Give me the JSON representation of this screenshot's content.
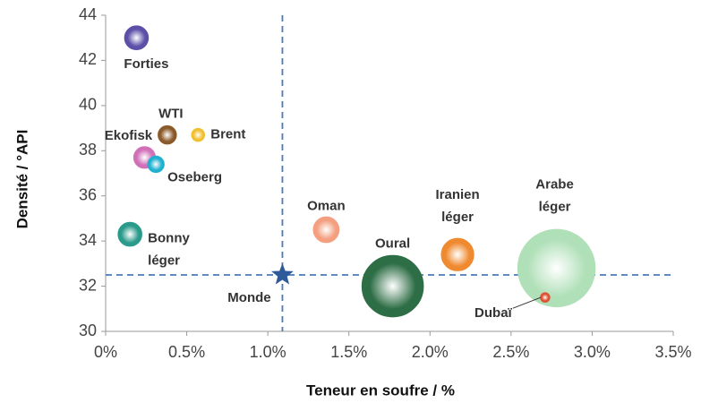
{
  "chart_data": {
    "type": "bubble",
    "x_label": "Teneur en soufre / %",
    "y_label": "Densité / °API",
    "xlim": [
      0,
      3.5
    ],
    "xticks": [
      {
        "value": 0,
        "label": "0%"
      },
      {
        "value": 0.5,
        "label": "0.5%"
      },
      {
        "value": 1,
        "label": "1.0%"
      },
      {
        "value": 1.5,
        "label": "1.5%"
      },
      {
        "value": 2,
        "label": "2.0%"
      },
      {
        "value": 2.5,
        "label": "2.5%"
      },
      {
        "value": 3,
        "label": "3.0%"
      },
      {
        "value": 3.5,
        "label": "3.5%"
      }
    ],
    "ylim": [
      30,
      44
    ],
    "yticks": [
      30,
      32,
      34,
      36,
      38,
      40,
      42,
      44
    ],
    "points": [
      {
        "label": [
          "Forties"
        ],
        "x": 0.19,
        "y": 43.0,
        "size": 17,
        "color": "#5b4fa8"
      },
      {
        "label": [
          "WTI"
        ],
        "x": 0.38,
        "y": 38.7,
        "size": 10,
        "color": "#8b5a2b"
      },
      {
        "label": [
          "Brent"
        ],
        "x": 0.57,
        "y": 38.7,
        "size": 5,
        "color": "#f0c030"
      },
      {
        "label": [
          "Ekofisk"
        ],
        "x": 0.24,
        "y": 37.7,
        "size": 14,
        "color": "#d070b8"
      },
      {
        "label": [
          "Oseberg"
        ],
        "x": 0.31,
        "y": 37.4,
        "size": 8,
        "color": "#20b0d0"
      },
      {
        "label": [
          "Bonny",
          "léger"
        ],
        "x": 0.15,
        "y": 34.3,
        "size": 17,
        "color": "#2a9a8a"
      },
      {
        "label": [
          "Oman"
        ],
        "x": 1.36,
        "y": 34.5,
        "size": 20,
        "color": "#f4a080"
      },
      {
        "label": [
          "Oural"
        ],
        "x": 1.77,
        "y": 32.0,
        "size": 116,
        "color": "#2e6e46"
      },
      {
        "label": [
          "Iranien",
          "léger"
        ],
        "x": 2.17,
        "y": 33.4,
        "size": 32,
        "color": "#f08a30"
      },
      {
        "label": [
          "Arabe",
          "léger"
        ],
        "x": 2.78,
        "y": 32.8,
        "size": 185,
        "color": "#b0e0b8"
      },
      {
        "label": [
          "Dubaï"
        ],
        "x": 2.71,
        "y": 31.5,
        "size": 2.5,
        "color": "#e05030"
      }
    ],
    "reference": {
      "label": "Monde",
      "x": 1.09,
      "y": 32.5,
      "color": "#2f5a9a"
    }
  }
}
